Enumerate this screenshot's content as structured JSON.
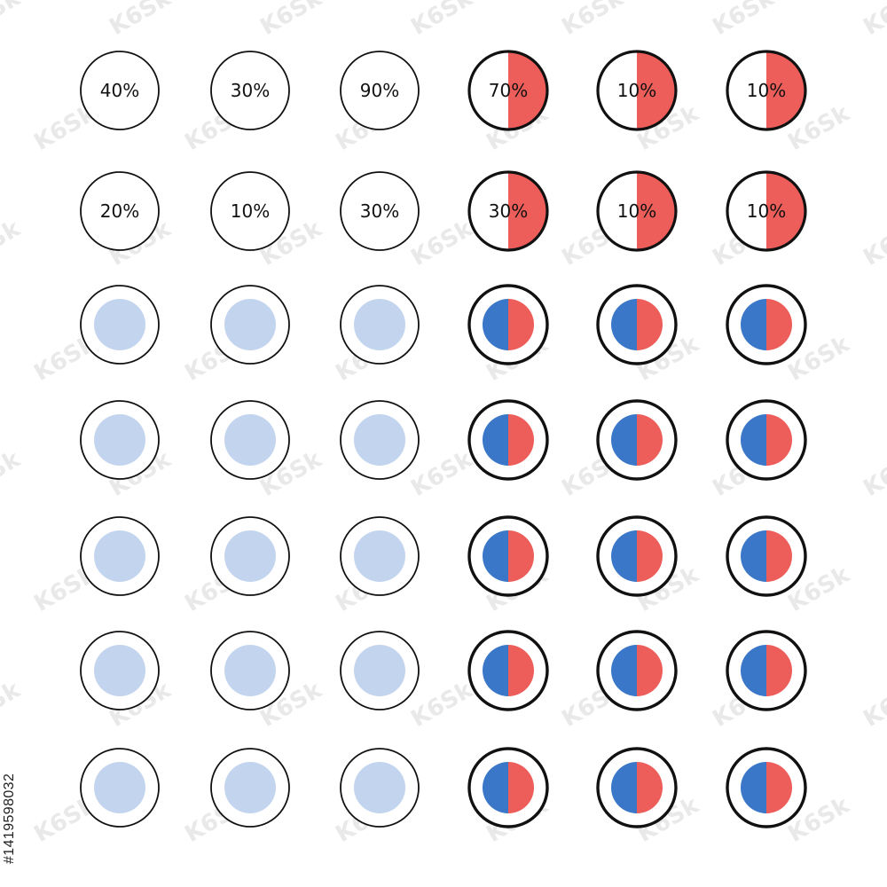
{
  "colors": {
    "background": "#ffffff",
    "outline": "#111111",
    "light_blue": "#c3d5ee",
    "blue": "#3a77c8",
    "red": "#ed5e5a",
    "watermark": "#e9e9e9"
  },
  "watermark": {
    "text": "K6Sk"
  },
  "stock_id": "#1419598032",
  "label_rows": [
    [
      "40%",
      "30%",
      "90%",
      "70%",
      "10%",
      "10%"
    ],
    [
      "20%",
      "10%",
      "30%",
      "30%",
      "10%",
      "10%"
    ]
  ],
  "label_fill_fraction": [
    [
      0,
      0,
      0,
      0.5,
      0.5,
      0.5
    ],
    [
      0,
      0,
      0,
      0.5,
      0.5,
      0.5
    ]
  ],
  "dot_rows": {
    "count": 5,
    "light_columns": 3,
    "split_columns": 3,
    "split_left_color": "blue",
    "split_right_color": "red"
  }
}
